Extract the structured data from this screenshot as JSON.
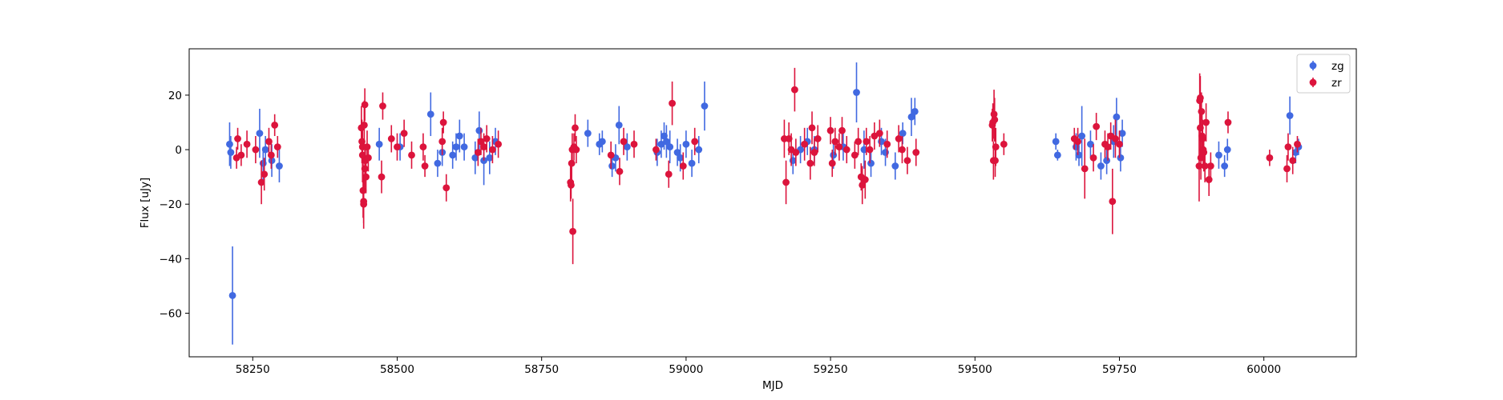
{
  "chart_data": {
    "type": "scatter",
    "title": "",
    "xlabel": "MJD",
    "ylabel": "Flux [uJy]",
    "xlim": [
      58140,
      60160
    ],
    "ylim": [
      -76,
      37
    ],
    "xticks": [
      58250,
      58500,
      58750,
      59000,
      59250,
      59500,
      59750,
      60000
    ],
    "yticks": [
      -60,
      -40,
      -20,
      0,
      20
    ],
    "grid": false,
    "legend_position": "top-right",
    "series": [
      {
        "name": "zg",
        "color": "#4169e1",
        "points": [
          {
            "x": 58210,
            "y": 2.0,
            "err": 8
          },
          {
            "x": 58212,
            "y": -1.0,
            "err": 6
          },
          {
            "x": 58215,
            "y": -53.5,
            "err": 18
          },
          {
            "x": 58262,
            "y": 6.0,
            "err": 9
          },
          {
            "x": 58268,
            "y": -5.0,
            "err": 6
          },
          {
            "x": 58272,
            "y": 0.0,
            "err": 5
          },
          {
            "x": 58283,
            "y": -4.0,
            "err": 6
          },
          {
            "x": 58296,
            "y": -6.0,
            "err": 6
          },
          {
            "x": 58469,
            "y": 2.0,
            "err": 6
          },
          {
            "x": 58505,
            "y": 1.0,
            "err": 5
          },
          {
            "x": 58558,
            "y": 13.0,
            "err": 8
          },
          {
            "x": 58570,
            "y": -5.0,
            "err": 5
          },
          {
            "x": 58578,
            "y": -1.0,
            "err": 5
          },
          {
            "x": 58596,
            "y": -2.0,
            "err": 5
          },
          {
            "x": 58602,
            "y": 1.0,
            "err": 5
          },
          {
            "x": 58608,
            "y": 5.0,
            "err": 6
          },
          {
            "x": 58616,
            "y": 1.0,
            "err": 5
          },
          {
            "x": 58635,
            "y": -3.0,
            "err": 6
          },
          {
            "x": 58642,
            "y": 7.0,
            "err": 7
          },
          {
            "x": 58650,
            "y": -4.0,
            "err": 9
          },
          {
            "x": 58660,
            "y": -3.0,
            "err": 6
          },
          {
            "x": 58670,
            "y": 3.0,
            "err": 5
          },
          {
            "x": 58830,
            "y": 6.0,
            "err": 5
          },
          {
            "x": 58850,
            "y": 2.0,
            "err": 4
          },
          {
            "x": 58855,
            "y": 3.0,
            "err": 4
          },
          {
            "x": 58872,
            "y": -6.0,
            "err": 4
          },
          {
            "x": 58878,
            "y": -3.0,
            "err": 5
          },
          {
            "x": 58884,
            "y": 9.0,
            "err": 7
          },
          {
            "x": 58898,
            "y": 1.0,
            "err": 5
          },
          {
            "x": 58950,
            "y": -1.0,
            "err": 5
          },
          {
            "x": 58957,
            "y": 2.0,
            "err": 5
          },
          {
            "x": 58962,
            "y": 5.0,
            "err": 5
          },
          {
            "x": 58966,
            "y": 3.0,
            "err": 6
          },
          {
            "x": 58972,
            "y": 1.0,
            "err": 6
          },
          {
            "x": 58985,
            "y": -1.0,
            "err": 5
          },
          {
            "x": 58990,
            "y": -3.0,
            "err": 5
          },
          {
            "x": 59000,
            "y": 2.0,
            "err": 5
          },
          {
            "x": 59010,
            "y": -5.0,
            "err": 5
          },
          {
            "x": 59022,
            "y": 0.0,
            "err": 5
          },
          {
            "x": 59032,
            "y": 16.0,
            "err": 9
          },
          {
            "x": 59185,
            "y": -4.0,
            "err": 5
          },
          {
            "x": 59198,
            "y": 0.0,
            "err": 5
          },
          {
            "x": 59210,
            "y": 3.0,
            "err": 5
          },
          {
            "x": 59222,
            "y": 0.0,
            "err": 5
          },
          {
            "x": 59255,
            "y": -2.0,
            "err": 5
          },
          {
            "x": 59272,
            "y": 1.0,
            "err": 5
          },
          {
            "x": 59295,
            "y": 21.0,
            "err": 11
          },
          {
            "x": 59308,
            "y": 0.0,
            "err": 7
          },
          {
            "x": 59320,
            "y": -5.0,
            "err": 5
          },
          {
            "x": 59338,
            "y": 3.0,
            "err": 5
          },
          {
            "x": 59345,
            "y": -1.0,
            "err": 5
          },
          {
            "x": 59362,
            "y": -6.0,
            "err": 5
          },
          {
            "x": 59375,
            "y": 6.0,
            "err": 4
          },
          {
            "x": 59390,
            "y": 12.0,
            "err": 7
          },
          {
            "x": 59396,
            "y": 14.0,
            "err": 5
          },
          {
            "x": 59640,
            "y": 3.0,
            "err": 3
          },
          {
            "x": 59643,
            "y": -2.0,
            "err": 2
          },
          {
            "x": 59675,
            "y": 1.0,
            "err": 5
          },
          {
            "x": 59680,
            "y": -2.0,
            "err": 4
          },
          {
            "x": 59685,
            "y": 5.0,
            "err": 11
          },
          {
            "x": 59700,
            "y": 2.0,
            "err": 5
          },
          {
            "x": 59718,
            "y": -6.0,
            "err": 5
          },
          {
            "x": 59728,
            "y": -4.0,
            "err": 5
          },
          {
            "x": 59740,
            "y": 3.0,
            "err": 6
          },
          {
            "x": 59745,
            "y": 12.0,
            "err": 7
          },
          {
            "x": 59752,
            "y": -3.0,
            "err": 5
          },
          {
            "x": 59755,
            "y": 6.0,
            "err": 5
          },
          {
            "x": 59922,
            "y": -2.0,
            "err": 5
          },
          {
            "x": 59932,
            "y": -6.0,
            "err": 4
          },
          {
            "x": 59937,
            "y": 0.0,
            "err": 4
          },
          {
            "x": 60045,
            "y": 12.5,
            "err": 7
          },
          {
            "x": 60055,
            "y": -1.0,
            "err": 4
          },
          {
            "x": 60060,
            "y": 1.0,
            "err": 3
          }
        ]
      },
      {
        "name": "zr",
        "color": "#dc143c",
        "points": [
          {
            "x": 58222,
            "y": -3.0,
            "err": 4
          },
          {
            "x": 58224,
            "y": 4.0,
            "err": 4
          },
          {
            "x": 58230,
            "y": -2.0,
            "err": 4
          },
          {
            "x": 58240,
            "y": 2.0,
            "err": 5
          },
          {
            "x": 58255,
            "y": 0.0,
            "err": 5
          },
          {
            "x": 58265,
            "y": -12.0,
            "err": 8
          },
          {
            "x": 58270,
            "y": -9.0,
            "err": 6
          },
          {
            "x": 58278,
            "y": 3.0,
            "err": 5
          },
          {
            "x": 58282,
            "y": -2.0,
            "err": 5
          },
          {
            "x": 58288,
            "y": 9.0,
            "err": 4
          },
          {
            "x": 58293,
            "y": 1.0,
            "err": 4
          },
          {
            "x": 58438,
            "y": 8.0,
            "err": 8
          },
          {
            "x": 58439,
            "y": 3.0,
            "err": 8
          },
          {
            "x": 58440,
            "y": 1.0,
            "err": 8
          },
          {
            "x": 58440,
            "y": -2.0,
            "err": 10
          },
          {
            "x": 58441,
            "y": -15.0,
            "err": 10
          },
          {
            "x": 58442,
            "y": -20.0,
            "err": 9
          },
          {
            "x": 58442,
            "y": -19.0,
            "err": 8
          },
          {
            "x": 58443,
            "y": 9.0,
            "err": 9
          },
          {
            "x": 58444,
            "y": 16.5,
            "err": 6
          },
          {
            "x": 58444,
            "y": -7.0,
            "err": 7
          },
          {
            "x": 58445,
            "y": -4.0,
            "err": 6
          },
          {
            "x": 58446,
            "y": -10.0,
            "err": 6
          },
          {
            "x": 58448,
            "y": 1.0,
            "err": 6
          },
          {
            "x": 58450,
            "y": -3.0,
            "err": 5
          },
          {
            "x": 58473,
            "y": -10.0,
            "err": 6
          },
          {
            "x": 58475,
            "y": 16.0,
            "err": 5
          },
          {
            "x": 58490,
            "y": 4.0,
            "err": 5
          },
          {
            "x": 58500,
            "y": 1.0,
            "err": 5
          },
          {
            "x": 58512,
            "y": 6.0,
            "err": 5
          },
          {
            "x": 58525,
            "y": -2.0,
            "err": 5
          },
          {
            "x": 58545,
            "y": 1.0,
            "err": 5
          },
          {
            "x": 58548,
            "y": -6.0,
            "err": 4
          },
          {
            "x": 58578,
            "y": 3.0,
            "err": 5
          },
          {
            "x": 58580,
            "y": 10.0,
            "err": 4
          },
          {
            "x": 58585,
            "y": -14.0,
            "err": 5
          },
          {
            "x": 58640,
            "y": -1.0,
            "err": 5
          },
          {
            "x": 58645,
            "y": 3.0,
            "err": 5
          },
          {
            "x": 58650,
            "y": 1.0,
            "err": 5
          },
          {
            "x": 58655,
            "y": 4.0,
            "err": 5
          },
          {
            "x": 58665,
            "y": 0.0,
            "err": 5
          },
          {
            "x": 58675,
            "y": 2.0,
            "err": 5
          },
          {
            "x": 58800,
            "y": -12.0,
            "err": 7
          },
          {
            "x": 58801,
            "y": -13.0,
            "err": 5
          },
          {
            "x": 58802,
            "y": -5.0,
            "err": 6
          },
          {
            "x": 58803,
            "y": 0.0,
            "err": 6
          },
          {
            "x": 58804,
            "y": -30.0,
            "err": 12
          },
          {
            "x": 58806,
            "y": 1.0,
            "err": 5
          },
          {
            "x": 58808,
            "y": 8.0,
            "err": 5
          },
          {
            "x": 58810,
            "y": 0.0,
            "err": 5
          },
          {
            "x": 58870,
            "y": -2.0,
            "err": 5
          },
          {
            "x": 58885,
            "y": -8.0,
            "err": 5
          },
          {
            "x": 58892,
            "y": 3.0,
            "err": 5
          },
          {
            "x": 58910,
            "y": 2.0,
            "err": 5
          },
          {
            "x": 58948,
            "y": 0.0,
            "err": 4
          },
          {
            "x": 58970,
            "y": -9.0,
            "err": 5
          },
          {
            "x": 58976,
            "y": 17.0,
            "err": 8
          },
          {
            "x": 58995,
            "y": -6.0,
            "err": 5
          },
          {
            "x": 59015,
            "y": 3.0,
            "err": 5
          },
          {
            "x": 59170,
            "y": 4.0,
            "err": 7
          },
          {
            "x": 59173,
            "y": -12.0,
            "err": 8
          },
          {
            "x": 59178,
            "y": 4.0,
            "err": 6
          },
          {
            "x": 59182,
            "y": 0.0,
            "err": 6
          },
          {
            "x": 59188,
            "y": 22.0,
            "err": 8
          },
          {
            "x": 59190,
            "y": -1.0,
            "err": 5
          },
          {
            "x": 59205,
            "y": 2.0,
            "err": 6
          },
          {
            "x": 59215,
            "y": -5.0,
            "err": 6
          },
          {
            "x": 59218,
            "y": 8.0,
            "err": 6
          },
          {
            "x": 59222,
            "y": -1.0,
            "err": 5
          },
          {
            "x": 59228,
            "y": 4.0,
            "err": 5
          },
          {
            "x": 59250,
            "y": 7.0,
            "err": 5
          },
          {
            "x": 59253,
            "y": -5.0,
            "err": 5
          },
          {
            "x": 59258,
            "y": 3.0,
            "err": 5
          },
          {
            "x": 59265,
            "y": 1.0,
            "err": 5
          },
          {
            "x": 59270,
            "y": 7.0,
            "err": 5
          },
          {
            "x": 59278,
            "y": 0.0,
            "err": 5
          },
          {
            "x": 59292,
            "y": -2.0,
            "err": 5
          },
          {
            "x": 59298,
            "y": 3.0,
            "err": 5
          },
          {
            "x": 59303,
            "y": -10.0,
            "err": 5
          },
          {
            "x": 59305,
            "y": -13.0,
            "err": 7
          },
          {
            "x": 59310,
            "y": -11.0,
            "err": 7
          },
          {
            "x": 59312,
            "y": 3.0,
            "err": 5
          },
          {
            "x": 59318,
            "y": 0.0,
            "err": 5
          },
          {
            "x": 59326,
            "y": 5.0,
            "err": 5
          },
          {
            "x": 59335,
            "y": 6.0,
            "err": 5
          },
          {
            "x": 59348,
            "y": 2.0,
            "err": 5
          },
          {
            "x": 59368,
            "y": 4.0,
            "err": 5
          },
          {
            "x": 59374,
            "y": 0.0,
            "err": 5
          },
          {
            "x": 59383,
            "y": -4.0,
            "err": 5
          },
          {
            "x": 59398,
            "y": -1.0,
            "err": 5
          },
          {
            "x": 59530,
            "y": 9.0,
            "err": 6
          },
          {
            "x": 59531,
            "y": 10.0,
            "err": 7
          },
          {
            "x": 59532,
            "y": -4.0,
            "err": 7
          },
          {
            "x": 59533,
            "y": 13.0,
            "err": 9
          },
          {
            "x": 59534,
            "y": 11.0,
            "err": 8
          },
          {
            "x": 59535,
            "y": -4.0,
            "err": 6
          },
          {
            "x": 59536,
            "y": 1.0,
            "err": 7
          },
          {
            "x": 59550,
            "y": 2.0,
            "err": 4
          },
          {
            "x": 59672,
            "y": 4.0,
            "err": 4
          },
          {
            "x": 59678,
            "y": 3.0,
            "err": 5
          },
          {
            "x": 59690,
            "y": -7.0,
            "err": 11
          },
          {
            "x": 59705,
            "y": -3.0,
            "err": 5
          },
          {
            "x": 59710,
            "y": 8.5,
            "err": 5
          },
          {
            "x": 59725,
            "y": 2.0,
            "err": 5
          },
          {
            "x": 59730,
            "y": 1.0,
            "err": 5
          },
          {
            "x": 59735,
            "y": 5.0,
            "err": 5
          },
          {
            "x": 59738,
            "y": -19.0,
            "err": 12
          },
          {
            "x": 59743,
            "y": 4.0,
            "err": 7
          },
          {
            "x": 59750,
            "y": 2.0,
            "err": 5
          },
          {
            "x": 59888,
            "y": -6.0,
            "err": 13
          },
          {
            "x": 59889,
            "y": 18.0,
            "err": 10
          },
          {
            "x": 59890,
            "y": 19.0,
            "err": 8
          },
          {
            "x": 59890,
            "y": 8.0,
            "err": 10
          },
          {
            "x": 59891,
            "y": -3.0,
            "err": 8
          },
          {
            "x": 59892,
            "y": 14.0,
            "err": 7
          },
          {
            "x": 59893,
            "y": 5.0,
            "err": 8
          },
          {
            "x": 59894,
            "y": 4.0,
            "err": 7
          },
          {
            "x": 59895,
            "y": 0.0,
            "err": 6
          },
          {
            "x": 59896,
            "y": -1.0,
            "err": 7
          },
          {
            "x": 59898,
            "y": -6.0,
            "err": 6
          },
          {
            "x": 59900,
            "y": 10.0,
            "err": 7
          },
          {
            "x": 59905,
            "y": -11.0,
            "err": 6
          },
          {
            "x": 59908,
            "y": -6.0,
            "err": 5
          },
          {
            "x": 59938,
            "y": 10.0,
            "err": 4
          },
          {
            "x": 60010,
            "y": -3.0,
            "err": 3
          },
          {
            "x": 60040,
            "y": -7.0,
            "err": 5
          },
          {
            "x": 60042,
            "y": 1.0,
            "err": 5
          },
          {
            "x": 60050,
            "y": -4.0,
            "err": 5
          },
          {
            "x": 60058,
            "y": 2.0,
            "err": 3
          }
        ]
      }
    ]
  }
}
